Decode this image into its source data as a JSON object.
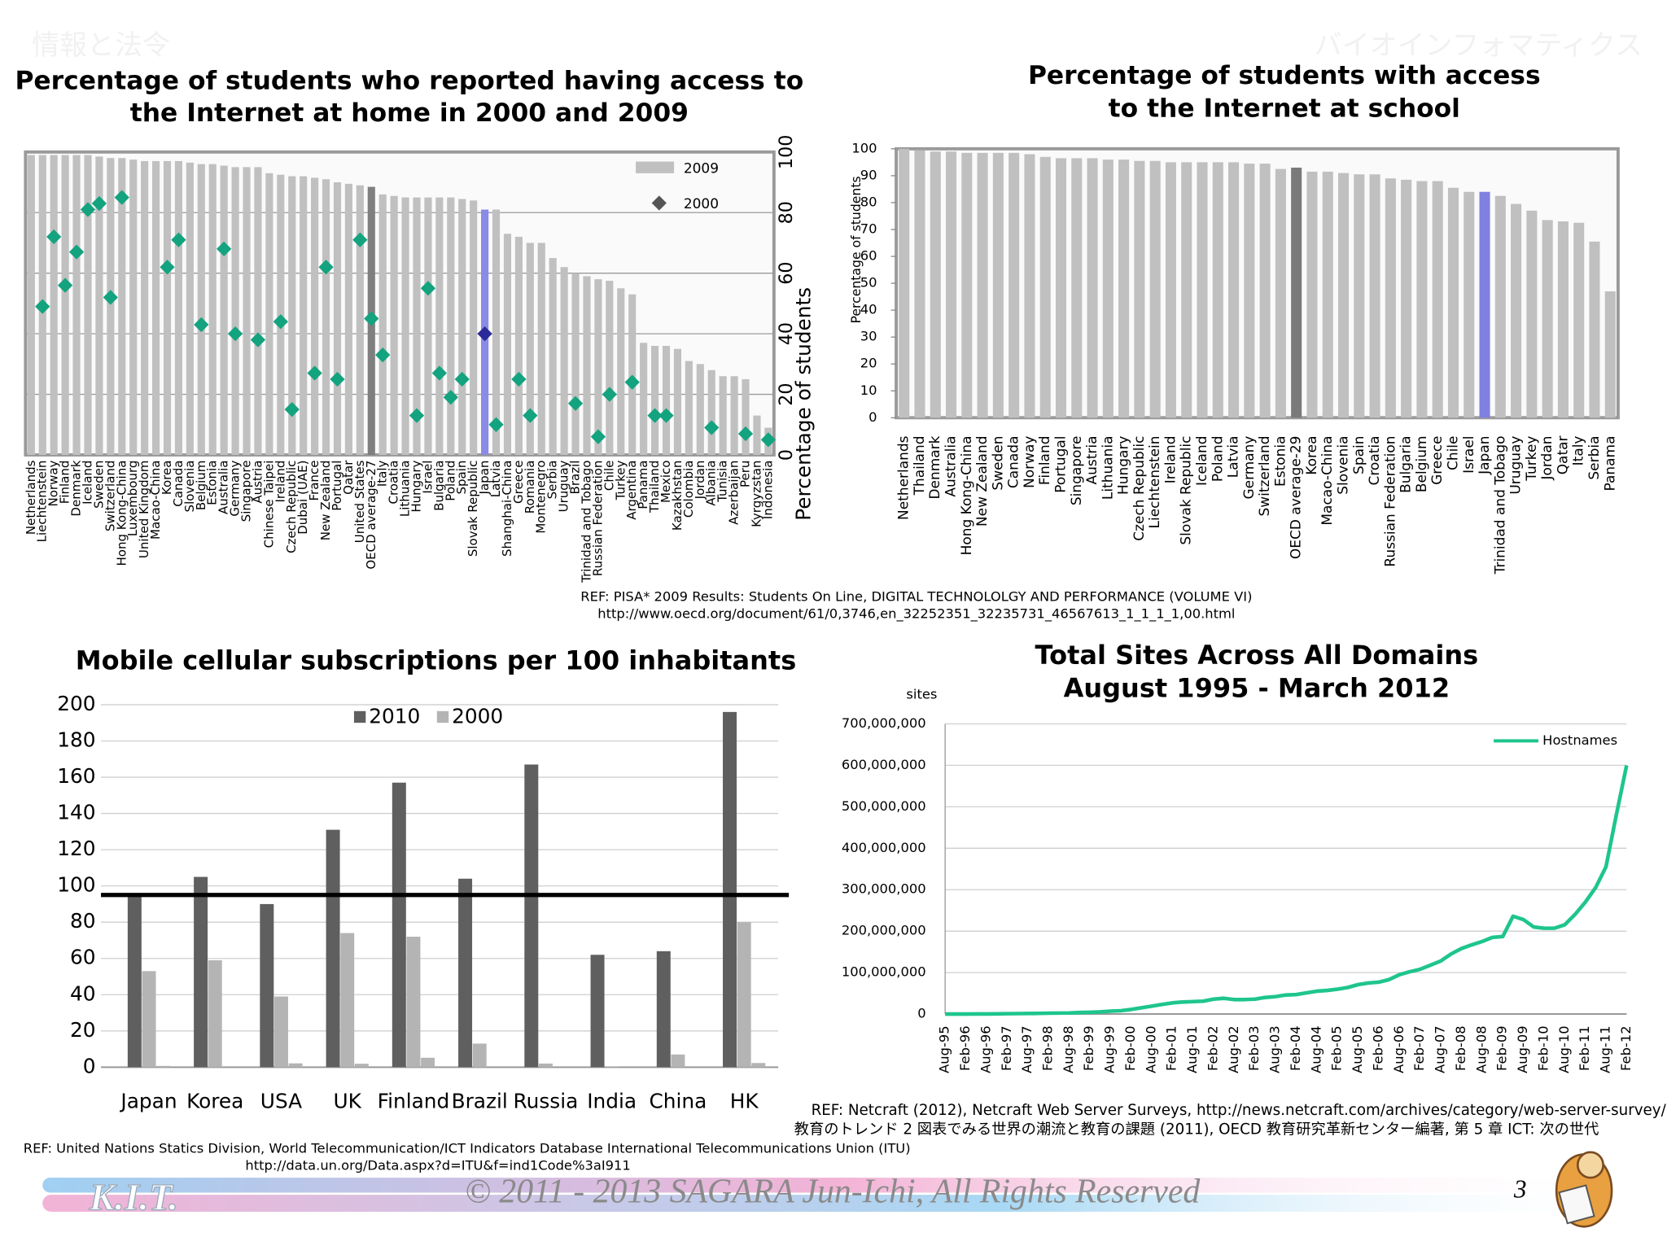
{
  "header": {
    "left": "情報と法令",
    "right": "バイオインフォマティクス"
  },
  "chart_data": [
    {
      "type": "bar",
      "title": [
        "Percentage of students who reported having access to",
        "the Internet at home in 2000 and 2009"
      ],
      "y_label": "Percentage of students",
      "categories": [
        "Netherlands",
        "Liechtenstein",
        "Norway",
        "Finland",
        "Denmark",
        "Iceland",
        "Sweden",
        "Switzerland",
        "Hong Kong-China",
        "Luxembourg",
        "United Kingdom",
        "Macao-China",
        "Korea",
        "Canada",
        "Slovenia",
        "Belgium",
        "Estonia",
        "Australia",
        "Germany",
        "Singapore",
        "Austria",
        "Chinese Taipei",
        "Ireland",
        "Czech Republic",
        "Dubai (UAE)",
        "France",
        "New Zealand",
        "Portugal",
        "Qatar",
        "United States",
        "OECD average-27",
        "Italy",
        "Croatia",
        "Lithuania",
        "Hungary",
        "Israel",
        "Bulgaria",
        "Poland",
        "Spain",
        "Slovak Republic",
        "Japan",
        "Latvia",
        "Shanghai-China",
        "Greece",
        "Romania",
        "Montenegro",
        "Serbia",
        "Uruguay",
        "Brazil",
        "Trinidad and Tobago",
        "Russian Federation",
        "Chile",
        "Turkey",
        "Argentina",
        "Panama",
        "Thailand",
        "Mexico",
        "Kazakhstan",
        "Colombia",
        "Jordan",
        "Albania",
        "Tunisia",
        "Azerbaijan",
        "Peru",
        "Kyrgyzstan",
        "Indonesia"
      ],
      "series": [
        {
          "name": "2009",
          "color": "#c0c0c0",
          "highlights": [
            {
              "index": 30,
              "color": "#7f7f7f"
            },
            {
              "index": 40,
              "color": "#8a8ae8"
            }
          ],
          "values": [
            99,
            99,
            99,
            99,
            99,
            99,
            98.5,
            98,
            98,
            97.5,
            97,
            97,
            97,
            97,
            96.5,
            96,
            96,
            95.5,
            95,
            95,
            95,
            93,
            92.5,
            92,
            92,
            91.5,
            91,
            90,
            89.5,
            89,
            88.5,
            86,
            85.5,
            85,
            85,
            85,
            85,
            85,
            84.5,
            84,
            81,
            81,
            73,
            72,
            70,
            70,
            65,
            62,
            60,
            59,
            58,
            57.5,
            55,
            53,
            37,
            36,
            36,
            35,
            31,
            30,
            28,
            26,
            26,
            25,
            13,
            9
          ]
        },
        {
          "name": "2000",
          "color": "#14a37f",
          "marker": "diamond",
          "highlights": [
            {
              "index": 40,
              "color": "#2a2a9a"
            }
          ],
          "values": [
            null,
            49,
            72,
            56,
            67,
            81,
            83,
            52,
            85,
            null,
            null,
            null,
            62,
            71,
            null,
            43,
            null,
            68,
            40,
            null,
            38,
            null,
            44,
            15,
            null,
            27,
            62,
            25,
            null,
            71,
            45,
            33,
            null,
            null,
            13,
            55,
            27,
            19,
            25,
            null,
            40,
            10,
            null,
            25,
            13,
            null,
            null,
            null,
            17,
            null,
            6,
            20,
            null,
            24,
            null,
            13,
            13,
            null,
            null,
            null,
            9,
            null,
            null,
            7,
            null,
            5
          ]
        }
      ],
      "ylim": [
        0,
        100
      ],
      "yticks": [
        0,
        20,
        40,
        60,
        80,
        100
      ],
      "y_axis_side": "right",
      "grid": true,
      "frame": true,
      "legend": "top-right"
    },
    {
      "type": "bar",
      "title": [
        "Percentage of students with access",
        "to the Internet at school"
      ],
      "y_label": "Percentage of students",
      "categories": [
        "Netherlands",
        "Thailand",
        "Denmark",
        "Australia",
        "Hong Kong-China",
        "New Zealand",
        "Sweden",
        "Canada",
        "Norway",
        "Finland",
        "Portugal",
        "Singapore",
        "Austria",
        "Lithuania",
        "Hungary",
        "Czech Republic",
        "Liechtenstein",
        "Ireland",
        "Slovak Republic",
        "Iceland",
        "Poland",
        "Latvia",
        "Germany",
        "Switzerland",
        "Estonia",
        "OECD average-29",
        "Korea",
        "Macao-China",
        "Slovenia",
        "Spain",
        "Croatia",
        "Russian Federation",
        "Bulgaria",
        "Belgium",
        "Greece",
        "Chile",
        "Israel",
        "Japan",
        "Trinidad and Tobago",
        "Uruguay",
        "Turkey",
        "Jordan",
        "Qatar",
        "Italy",
        "Serbia",
        "Panama"
      ],
      "series": [
        {
          "color": "#c0c0c0",
          "highlights": [
            {
              "index": 25,
              "color": "#7a7a7a"
            },
            {
              "index": 37,
              "color": "#8080e0"
            }
          ],
          "values": [
            100,
            99.5,
            99,
            99,
            98.5,
            98.5,
            98.5,
            98.5,
            98,
            97,
            96.5,
            96.5,
            96.5,
            96,
            96,
            95.5,
            95.5,
            95,
            95,
            95,
            95,
            95,
            94.5,
            94.5,
            92.5,
            93,
            91.5,
            91.5,
            91,
            90.5,
            90.5,
            89,
            88.5,
            88,
            88,
            85.5,
            84,
            84,
            82.5,
            79.5,
            77,
            73.5,
            73,
            72.5,
            65.5,
            47
          ]
        }
      ],
      "ylim": [
        0,
        100
      ],
      "yticks": [
        0,
        10,
        20,
        30,
        40,
        50,
        60,
        70,
        80,
        90,
        100
      ],
      "y_axis_side": "left",
      "grid": false,
      "frame": true
    },
    {
      "type": "bar",
      "title": [
        "Mobile cellular subscriptions per 100 inhabitants"
      ],
      "categories": [
        "Japan",
        "Korea",
        "USA",
        "UK",
        "Finland",
        "Brazil",
        "Russia",
        "India",
        "China",
        "HK"
      ],
      "series": [
        {
          "name": "2010",
          "color": "#5f5f5f",
          "values": [
            96,
            105,
            90,
            131,
            157,
            104,
            167,
            62,
            64,
            196
          ]
        },
        {
          "name": "2000",
          "color": "#b4b4b4",
          "values": [
            53,
            59,
            39,
            74,
            72,
            13,
            2,
            0.4,
            7,
            80
          ]
        },
        {
          "color": "#b4b4b4",
          "values": [
            0.7,
            null,
            2.1,
            1.9,
            5.2,
            null,
            null,
            null,
            null,
            2.3
          ]
        }
      ],
      "reference_line": {
        "value": 95,
        "color": "#000000"
      },
      "ylim": [
        0,
        200
      ],
      "yticks": [
        0,
        20,
        40,
        60,
        80,
        100,
        120,
        140,
        160,
        180,
        200
      ],
      "y_axis_side": "left",
      "grid": true,
      "frame": false,
      "legend": "top-center"
    },
    {
      "type": "line",
      "title": [
        "Total Sites Across All Domains",
        "August 1995 - March 2012"
      ],
      "y_label": "sites",
      "categories": [
        "Aug-95",
        null,
        "Feb-96",
        null,
        "Aug-96",
        null,
        "Feb-97",
        null,
        "Aug-97",
        null,
        "Feb-98",
        null,
        "Aug-98",
        null,
        "Feb-99",
        null,
        "Aug-99",
        null,
        "Feb-00",
        null,
        "Aug-00",
        null,
        "Feb-01",
        null,
        "Aug-01",
        null,
        "Feb-02",
        null,
        "Aug-02",
        null,
        "Feb-03",
        null,
        "Aug-03",
        null,
        "Feb-04",
        null,
        "Aug-04",
        null,
        "Feb-05",
        null,
        "Aug-05",
        null,
        "Feb-06",
        null,
        "Aug-06",
        null,
        "Feb-07",
        null,
        "Aug-07",
        null,
        "Feb-08",
        null,
        "Aug-08",
        null,
        "Feb-09",
        null,
        "Aug-09",
        null,
        "Feb-10",
        null,
        "Aug-10",
        null,
        "Feb-11",
        null,
        "Aug-11",
        null,
        "Feb-12"
      ],
      "series": [
        {
          "name": "Hostnames",
          "color": "#1ec58e",
          "values": [
            20000,
            70000,
            100000,
            200000,
            300000,
            600000,
            800000,
            1000000,
            1400000,
            1500000,
            2000000,
            2400000,
            2600000,
            3500000,
            4100000,
            5000000,
            7000000,
            8000000,
            11000000,
            15000000,
            19000000,
            23000000,
            27000000,
            29000000,
            30000000,
            31000000,
            36000000,
            38000000,
            35000000,
            35000000,
            36000000,
            40000000,
            42000000,
            46000000,
            47000000,
            51000000,
            55000000,
            57000000,
            60000000,
            64000000,
            71000000,
            75000000,
            77000000,
            83000000,
            95000000,
            102000000,
            108000000,
            118000000,
            128000000,
            145000000,
            158000000,
            167000000,
            175000000,
            185000000,
            187000000,
            236000000,
            228000000,
            210000000,
            207000000,
            207000000,
            215000000,
            240000000,
            270000000,
            305000000,
            355000000,
            480000000,
            600000000
          ]
        }
      ],
      "ylim": [
        0,
        700000000
      ],
      "yticks": [
        0,
        {
          "value": 100000000,
          "label": "100,000,000"
        },
        {
          "value": 200000000,
          "label": "200,000,000"
        },
        {
          "value": 300000000,
          "label": "300,000,000"
        },
        {
          "value": 400000000,
          "label": "400,000,000"
        },
        {
          "value": 500000000,
          "label": "500,000,000"
        },
        {
          "value": 600000000,
          "label": "600,000,000"
        },
        {
          "value": 700000000,
          "label": "700,000,000"
        }
      ],
      "y_axis_side": "left",
      "grid": true,
      "frame": false,
      "legend": "top-right"
    }
  ],
  "references": {
    "pisa": [
      "REF: PISA* 2009 Results: Students On Line, DIGITAL TECHNOLOLGY AND PERFORMANCE (VOLUME VI)",
      "http://www.oecd.org/document/61/0,3746,en_32252351_32235731_46567613_1_1_1_1,00.html"
    ],
    "itu": [
      "REF: United Nations Statics Division, World Telecommunication/ICT Indicators Database International Telecommunications Union (ITU)",
      "http://data.un.org/Data.aspx?d=ITU&f=ind1Code%3aI911"
    ],
    "netcraft": [
      "REF: Netcraft (2012), Netcraft Web Server Surveys, http://news.netcraft.com/archives/category/web-server-survey/",
      "教育のトレンド 2 図表でみる世界の潮流と教育の課題 (2011), OECD 教育研究革新センター編著, 第 5 章 ICT: 次の世代"
    ]
  },
  "footer": {
    "logo": "K.I.T.",
    "copyright": "© 2011 - 2013 SAGARA Jun-Ichi, All Rights Reserved",
    "page": "3"
  }
}
